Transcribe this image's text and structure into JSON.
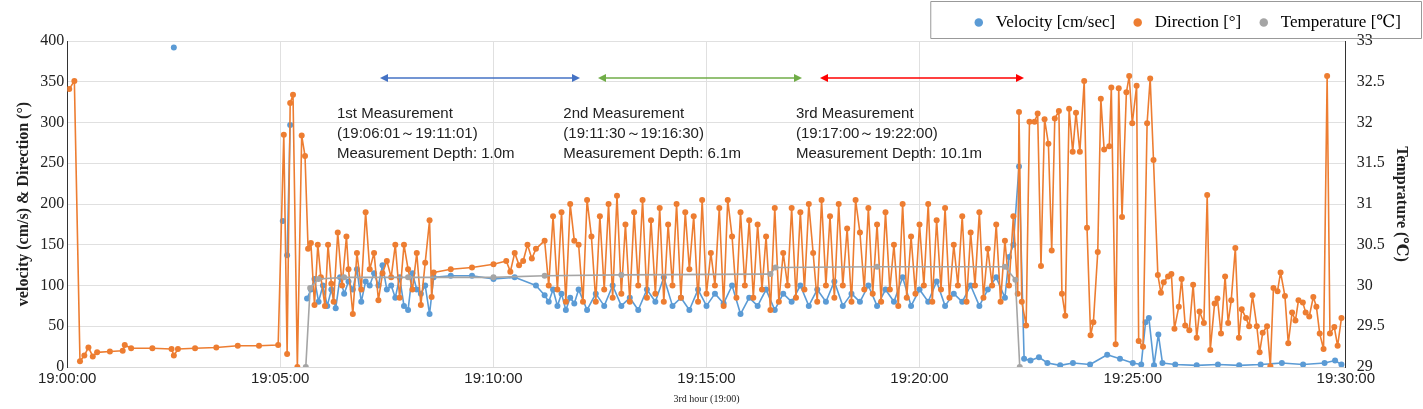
{
  "chart_data": {
    "type": "line",
    "xlabel": "3rd hour (19:00)",
    "ylabel": "velocity (cm/s) & Direction (°)",
    "y2label": "Temprature (℃)",
    "xlim": [
      19,
      19.5
    ],
    "xticks": [
      {
        "value": 19,
        "label": "19:00:00"
      },
      {
        "value": 19.0833,
        "label": "19:05:00"
      },
      {
        "value": 19.1667,
        "label": "19:10:00"
      },
      {
        "value": 19.25,
        "label": "19:15:00"
      },
      {
        "value": 19.3333,
        "label": "19:20:00"
      },
      {
        "value": 19.4167,
        "label": "19:25:00"
      },
      {
        "value": 19.5,
        "label": "19:30:00"
      }
    ],
    "ylim": [
      0,
      400
    ],
    "yticks": [
      0,
      50,
      100,
      150,
      200,
      250,
      300,
      350,
      400
    ],
    "y2lim": [
      29,
      33
    ],
    "y2ticks": [
      29,
      29.5,
      30,
      30.5,
      31,
      31.5,
      32,
      32.5,
      33
    ],
    "grid": true,
    "legend": "top right",
    "marker": "circle",
    "annotations": [
      "1st Measurement\n(19:06:01～19:11:01)\nMeasurement Depth: 1.0m",
      "2nd Measurement\n(19:11:30～19:16:30)\nMeasurement Depth: 6.1m",
      "3rd Measurement\n(19:17:00～19:22:00)\nMeasurement Depth: 10.1m"
    ],
    "series": [
      {
        "name": "Velocity [cm/sec]",
        "color": "#5b9bd5",
        "x": [
          19.0417,
          19.0667,
          19.0843,
          19.0853,
          19.086,
          19.0872,
          19.0883,
          19.0938,
          19.0953,
          19.0967,
          19.0983,
          19.1,
          19.1017,
          19.1033,
          19.105,
          19.1067,
          19.1083,
          19.11,
          19.1117,
          19.1133,
          19.115,
          19.1167,
          19.1183,
          19.12,
          19.1217,
          19.1233,
          19.125,
          19.1267,
          19.1283,
          19.13,
          19.1317,
          19.1333,
          19.135,
          19.1367,
          19.1383,
          19.14,
          19.1417,
          19.1433,
          19.15,
          19.1583,
          19.1667,
          19.175,
          19.1833,
          19.1867,
          19.1883,
          19.19,
          19.1917,
          19.1933,
          19.195,
          19.1967,
          19.1983,
          19.2,
          19.2033,
          19.2067,
          19.21,
          19.2133,
          19.2167,
          19.22,
          19.2233,
          19.2267,
          19.23,
          19.2333,
          19.2367,
          19.24,
          19.2433,
          19.2467,
          19.25,
          19.2533,
          19.2567,
          19.26,
          19.2633,
          19.2667,
          19.27,
          19.2733,
          19.2767,
          19.28,
          19.2833,
          19.2867,
          19.29,
          19.2933,
          19.2967,
          19.3,
          19.3033,
          19.3067,
          19.31,
          19.3133,
          19.3167,
          19.32,
          19.3233,
          19.3267,
          19.33,
          19.3333,
          19.3367,
          19.34,
          19.3433,
          19.3467,
          19.35,
          19.3533,
          19.3567,
          19.36,
          19.3633,
          19.3667,
          19.3683,
          19.37,
          19.3722,
          19.3742,
          19.3767,
          19.38,
          19.3833,
          19.3883,
          19.3933,
          19.4,
          19.4067,
          19.4117,
          19.4167,
          19.42,
          19.4217,
          19.423,
          19.425,
          19.4267,
          19.4283,
          19.4333,
          19.4417,
          19.45,
          19.4583,
          19.4667,
          19.475,
          19.4833,
          19.4917,
          19.4958,
          19.4983
        ],
        "values": [
          392,
          null,
          179,
          null,
          137,
          297,
          null,
          84,
          95,
          108,
          80,
          100,
          75,
          95,
          72,
          110,
          90,
          105,
          95,
          120,
          80,
          105,
          100,
          115,
          100,
          125,
          95,
          100,
          85,
          110,
          75,
          70,
          115,
          95,
          90,
          100,
          65,
          110,
          112,
          112,
          108,
          110,
          100,
          88,
          80,
          95,
          75,
          90,
          70,
          85,
          78,
          95,
          70,
          90,
          75,
          100,
          75,
          85,
          70,
          95,
          80,
          110,
          75,
          85,
          70,
          95,
          75,
          90,
          78,
          100,
          65,
          85,
          75,
          95,
          70,
          90,
          80,
          100,
          75,
          95,
          80,
          105,
          75,
          90,
          80,
          100,
          75,
          95,
          80,
          110,
          75,
          95,
          80,
          105,
          75,
          90,
          80,
          100,
          75,
          95,
          110,
          85,
          135,
          150,
          246,
          10,
          8,
          12,
          5,
          2,
          5,
          3,
          15,
          10,
          5,
          3,
          55,
          60,
          2,
          40,
          5,
          3,
          2,
          3,
          2,
          3,
          5,
          3,
          5,
          8,
          3
        ]
      },
      {
        "name": "Direction [°]",
        "color": "#ed7d31",
        "x": [
          19.0008,
          19.0028,
          19.005,
          19.0067,
          19.0083,
          19.01,
          19.0117,
          19.0167,
          19.0217,
          19.0225,
          19.025,
          19.0333,
          19.0408,
          19.0417,
          19.0433,
          19.05,
          19.0583,
          19.0667,
          19.075,
          19.0825,
          19.0847,
          19.086,
          19.0872,
          19.0883,
          19.09,
          19.0917,
          19.093,
          19.0942,
          19.0953,
          19.0967,
          19.098,
          19.0992,
          19.1008,
          19.102,
          19.1033,
          19.1042,
          19.1058,
          19.1075,
          19.1092,
          19.11,
          19.1117,
          19.1133,
          19.115,
          19.1167,
          19.1183,
          19.12,
          19.1217,
          19.1233,
          19.125,
          19.1267,
          19.1283,
          19.13,
          19.1317,
          19.1333,
          19.135,
          19.1367,
          19.1383,
          19.14,
          19.1417,
          19.1425,
          19.1433,
          19.15,
          19.1583,
          19.1667,
          19.1717,
          19.1733,
          19.175,
          19.1767,
          19.1783,
          19.18,
          19.1817,
          19.1833,
          19.1867,
          19.1883,
          19.19,
          19.1917,
          19.1933,
          19.195,
          19.1967,
          19.1983,
          19.2,
          19.2017,
          19.2033,
          19.205,
          19.2067,
          19.2083,
          19.21,
          19.2117,
          19.2133,
          19.215,
          19.2167,
          19.2183,
          19.22,
          19.2217,
          19.2233,
          19.225,
          19.2267,
          19.2283,
          19.23,
          19.2317,
          19.2333,
          19.235,
          19.2367,
          19.2383,
          19.24,
          19.2417,
          19.2433,
          19.245,
          19.2467,
          19.2483,
          19.25,
          19.2517,
          19.2533,
          19.255,
          19.2567,
          19.2583,
          19.26,
          19.2617,
          19.2633,
          19.265,
          19.2667,
          19.2683,
          19.27,
          19.2717,
          19.2733,
          19.275,
          19.2767,
          19.2783,
          19.28,
          19.2817,
          19.2833,
          19.285,
          19.2867,
          19.2883,
          19.29,
          19.2917,
          19.2933,
          19.295,
          19.2967,
          19.2983,
          19.3,
          19.3017,
          19.3033,
          19.305,
          19.3067,
          19.3083,
          19.31,
          19.3117,
          19.3133,
          19.315,
          19.3167,
          19.3183,
          19.32,
          19.3217,
          19.3233,
          19.325,
          19.3267,
          19.3283,
          19.33,
          19.3317,
          19.3333,
          19.335,
          19.3367,
          19.3383,
          19.34,
          19.3417,
          19.3433,
          19.345,
          19.3467,
          19.3483,
          19.35,
          19.3517,
          19.3533,
          19.355,
          19.3567,
          19.3583,
          19.36,
          19.3617,
          19.3633,
          19.365,
          19.3667,
          19.3683,
          19.37,
          19.3717,
          19.3722,
          19.3733,
          19.375,
          19.3763,
          19.3783,
          19.3795,
          19.3808,
          19.3822,
          19.3837,
          19.385,
          19.3862,
          19.3878,
          19.389,
          19.3903,
          19.3918,
          19.3932,
          19.3945,
          19.396,
          19.3977,
          19.3988,
          19.4002,
          19.4013,
          19.403,
          19.4042,
          19.4055,
          19.4075,
          19.4083,
          19.41,
          19.4112,
          19.4125,
          19.4142,
          19.4153,
          19.4165,
          19.4182,
          19.419,
          19.4207,
          19.4223,
          19.4235,
          19.4248,
          19.4265,
          19.4277,
          19.4288,
          19.4305,
          19.4318,
          19.433,
          19.4347,
          19.4358,
          19.4372,
          19.4388,
          19.4403,
          19.4417,
          19.4428,
          19.4445,
          19.4458,
          19.447,
          19.4487,
          19.4498,
          19.4512,
          19.4528,
          19.454,
          19.4552,
          19.4568,
          19.4582,
          19.4593,
          19.461,
          19.4622,
          19.4635,
          19.4652,
          19.4663,
          19.4675,
          19.4692,
          19.4705,
          19.4717,
          19.4733,
          19.4745,
          19.4762,
          19.4775,
          19.479,
          19.4803,
          19.4815,
          19.4832,
          19.4843,
          19.4857,
          19.4873,
          19.4885,
          19.4898,
          19.4913,
          19.4927,
          19.4938,
          19.4955,
          19.4968,
          19.4983
        ],
        "values": [
          341,
          351,
          7,
          14,
          24,
          13,
          18,
          19,
          20,
          27,
          23,
          23,
          22,
          14,
          22,
          23,
          24,
          26,
          26,
          27,
          285,
          16,
          324,
          334,
          0,
          284,
          259,
          145,
          152,
          76,
          150,
          110,
          75,
          150,
          102,
          80,
          165,
          100,
          160,
          120,
          65,
          140,
          95,
          190,
          120,
          140,
          82,
          115,
          130,
          110,
          150,
          85,
          150,
          120,
          95,
          140,
          76,
          128,
          180,
          86,
          116,
          120,
          122,
          126,
          130,
          117,
          140,
          125,
          130,
          150,
          133,
          145,
          155,
          100,
          185,
          95,
          190,
          80,
          200,
          155,
          150,
          80,
          205,
          160,
          80,
          185,
          95,
          200,
          85,
          210,
          90,
          175,
          80,
          190,
          100,
          205,
          85,
          180,
          90,
          195,
          80,
          175,
          100,
          200,
          85,
          190,
          120,
          185,
          80,
          205,
          90,
          140,
          100,
          195,
          75,
          205,
          160,
          85,
          190,
          100,
          180,
          85,
          175,
          95,
          160,
          70,
          195,
          80,
          140,
          100,
          195,
          85,
          190,
          95,
          200,
          140,
          80,
          205,
          100,
          185,
          85,
          200,
          100,
          170,
          80,
          205,
          165,
          95,
          195,
          90,
          175,
          80,
          190,
          95,
          150,
          75,
          200,
          85,
          160,
          90,
          175,
          100,
          200,
          80,
          180,
          95,
          195,
          85,
          150,
          100,
          185,
          80,
          165,
          100,
          190,
          85,
          145,
          100,
          175,
          80,
          155,
          100,
          185,
          90,
          313,
          80,
          51,
          301,
          301,
          311,
          124,
          304,
          274,
          143,
          305,
          314,
          90,
          63,
          317,
          264,
          312,
          264,
          351,
          171,
          39,
          55,
          141,
          329,
          267,
          271,
          343,
          28,
          342,
          184,
          337,
          357,
          299,
          345,
          32,
          25,
          299,
          354,
          254,
          113,
          91,
          104,
          111,
          114,
          47,
          74,
          108,
          51,
          45,
          101,
          36,
          68,
          54,
          211,
          21,
          78,
          84,
          41,
          111,
          54,
          82,
          146,
          36,
          71,
          60,
          50,
          88,
          50,
          18,
          42,
          50,
          1,
          97,
          93,
          116,
          87,
          29,
          67,
          57,
          82,
          79,
          67,
          62,
          86,
          74,
          41,
          22,
          357,
          41,
          49,
          26,
          60
        ]
      },
      {
        "name": "Temperature [℃]",
        "color": "#a5a5a5",
        "axis": "y2",
        "x": [
          19.0933,
          19.095,
          19.0983,
          19.1083,
          19.1333,
          19.1667,
          19.1867,
          19.2167,
          19.275,
          19.277,
          19.3167,
          19.3667,
          19.3708,
          19.3725
        ],
        "values": [
          29,
          29.97,
          30.08,
          30.1,
          30.1,
          30.1,
          30.12,
          30.13,
          30.14,
          30.22,
          30.23,
          30.23,
          30.07,
          29
        ]
      }
    ]
  }
}
